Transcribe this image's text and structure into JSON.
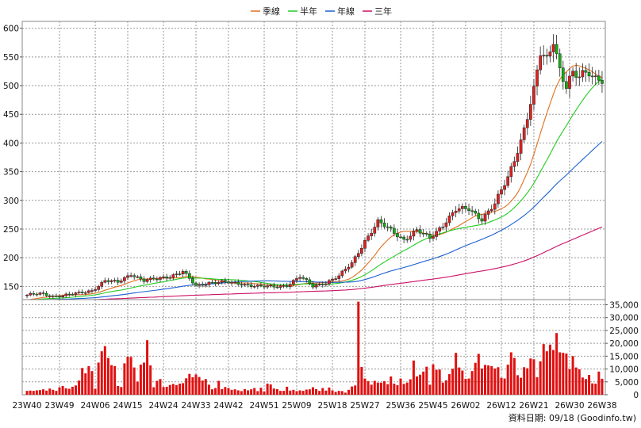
{
  "chart_data": {
    "type": "candlestick-with-volume",
    "legend": [
      {
        "name": "季線",
        "color": "#e07020"
      },
      {
        "name": "半年",
        "color": "#22cc22"
      },
      {
        "name": "年線",
        "color": "#1a5fd0"
      },
      {
        "name": "三年",
        "color": "#cc1166"
      }
    ],
    "legend_placement": "top-center",
    "x_ticks": [
      "23W40",
      "23W49",
      "24W06",
      "24W15",
      "24W24",
      "24W33",
      "24W42",
      "24W51",
      "25W09",
      "25W18",
      "25W27",
      "25W36",
      "25W45",
      "26W02",
      "26W12",
      "26W21",
      "26W30",
      "26W38"
    ],
    "price_axis": {
      "ticks": [
        150,
        200,
        250,
        300,
        350,
        400,
        450,
        500,
        550,
        600
      ],
      "ylim": [
        127,
        612
      ],
      "grid": true
    },
    "volume_axis": {
      "ticks": [
        "0",
        "5,000",
        "10,000",
        "15,000",
        "20,000",
        "25,000",
        "30,000",
        "35,000"
      ],
      "ylim": [
        0,
        37000
      ],
      "grid": true
    },
    "price_anchors": [
      [
        0,
        135
      ],
      [
        4,
        137
      ],
      [
        8,
        133
      ],
      [
        12,
        135
      ],
      [
        16,
        138
      ],
      [
        20,
        143
      ],
      [
        24,
        160
      ],
      [
        28,
        157
      ],
      [
        32,
        172
      ],
      [
        36,
        160
      ],
      [
        40,
        163
      ],
      [
        44,
        168
      ],
      [
        48,
        176
      ],
      [
        52,
        150
      ],
      [
        56,
        157
      ],
      [
        60,
        158
      ],
      [
        64,
        155
      ],
      [
        68,
        153
      ],
      [
        72,
        150
      ],
      [
        76,
        149
      ],
      [
        80,
        152
      ],
      [
        84,
        167
      ],
      [
        88,
        150
      ],
      [
        92,
        157
      ],
      [
        96,
        168
      ],
      [
        100,
        190
      ],
      [
        104,
        230
      ],
      [
        108,
        262
      ],
      [
        112,
        248
      ],
      [
        116,
        232
      ],
      [
        120,
        247
      ],
      [
        124,
        234
      ],
      [
        128,
        258
      ],
      [
        132,
        283
      ],
      [
        136,
        285
      ],
      [
        140,
        268
      ],
      [
        144,
        293
      ],
      [
        148,
        340
      ],
      [
        152,
        405
      ],
      [
        154,
        446
      ],
      [
        156,
        490
      ],
      [
        158,
        555
      ],
      [
        160,
        545
      ],
      [
        162,
        582
      ],
      [
        164,
        530
      ],
      [
        166,
        498
      ],
      [
        168,
        520
      ],
      [
        170,
        512
      ],
      [
        172,
        525
      ],
      [
        173,
        525
      ]
    ],
    "volume_values": [
      1500,
      1600,
      1500,
      1700,
      1800,
      2100,
      1600,
      2400,
      1900,
      1500,
      2900,
      3400,
      2500,
      2300,
      3100,
      3600,
      5500,
      10400,
      8300,
      11100,
      9200,
      2300,
      12500,
      16900,
      18900,
      14300,
      11500,
      11100,
      3400,
      3000,
      12200,
      14800,
      14700,
      10600,
      5100,
      11700,
      12500,
      21200,
      11400,
      2900,
      5400,
      6100,
      3000,
      3100,
      3800,
      4200,
      3700,
      4300,
      4500,
      6400,
      8100,
      6800,
      7900,
      6900,
      5500,
      6100,
      3900,
      2100,
      2600,
      5400,
      2200,
      3000,
      2600,
      1900,
      2100,
      1700,
      1400,
      2200,
      1700,
      2100,
      2600,
      1400,
      2700,
      1300,
      4300,
      4000,
      2400,
      2200,
      1500,
      1500,
      3100,
      1600,
      1900,
      1400,
      1700,
      1500,
      2000,
      2100,
      2900,
      2200,
      1500,
      2600,
      1600,
      2800,
      1700,
      1100,
      1500,
      1400,
      800,
      1900,
      3200,
      3600,
      36200,
      10800,
      6300,
      5300,
      3900,
      5400,
      4700,
      4700,
      5300,
      4100,
      7100,
      4300,
      3700,
      6300,
      4200,
      4700,
      6000,
      13300,
      7100,
      7800,
      9000,
      10900,
      3900,
      11800,
      9700,
      9800,
      4700,
      5600,
      8000,
      10100,
      16300,
      10600,
      9400,
      6200,
      6300,
      9200,
      12400,
      15900,
      10200,
      11600,
      11400,
      11100,
      10200,
      10700,
      6600,
      6300,
      11700,
      16500,
      14300,
      7600,
      6600,
      10700,
      10300,
      14100,
      13800,
      6800,
      13000,
      19700,
      16900,
      19500,
      17400,
      24000,
      16500,
      16300,
      16000,
      10000,
      15000,
      10600,
      9900,
      6700,
      6100,
      7700,
      4400,
      4300,
      9000,
      6200
    ]
  },
  "footer": {
    "credit": "資料日期: 09/18 (Goodinfo.tw)"
  }
}
